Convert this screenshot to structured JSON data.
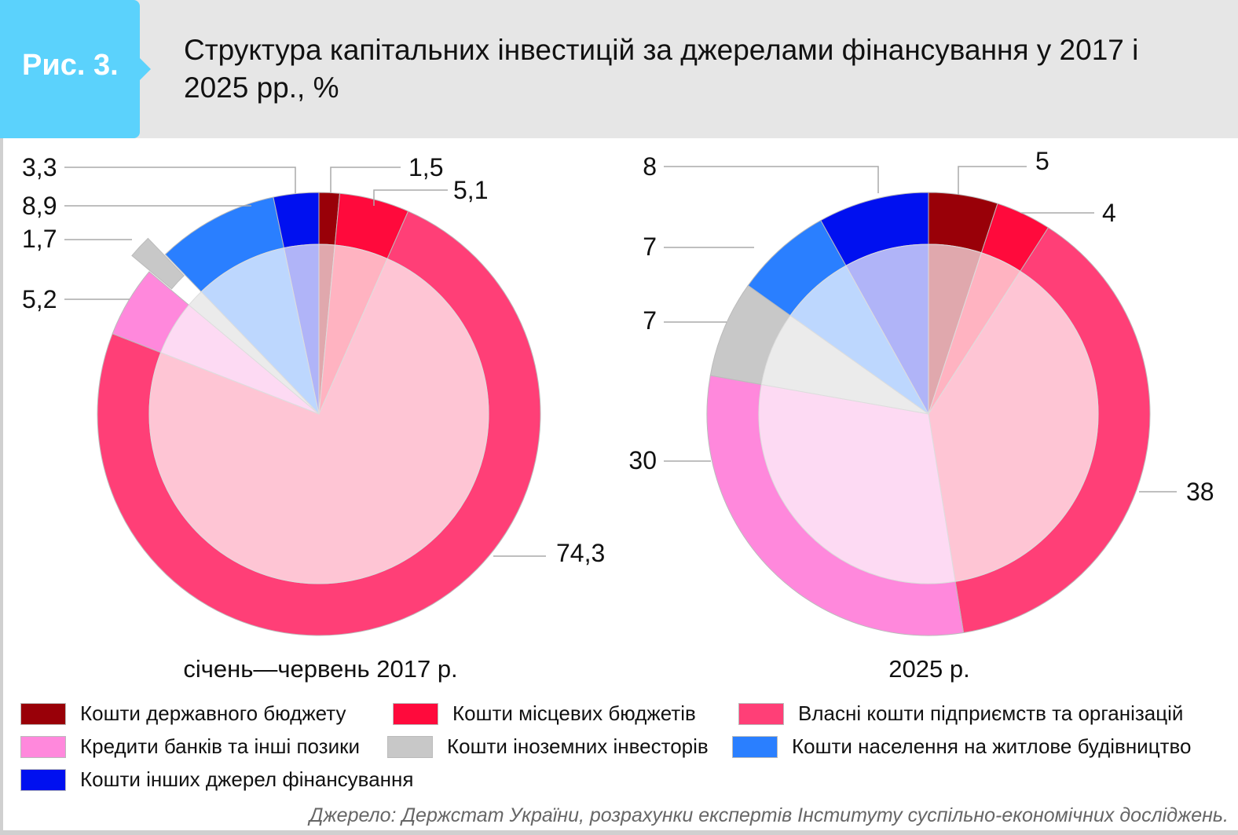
{
  "header": {
    "figure": "Рис. 3.",
    "title": "Структура капітальних інвестицій за джерелами фінансування у 2017 і 2025 рр., %"
  },
  "chart_data": [
    {
      "type": "pie",
      "title": "січень—червень 2017 р.",
      "categories": [
        "Кошти державного бюджету",
        "Кошти місцевих бюджетів",
        "Власні кошти підприємств та організацій",
        "Кредити банків та інші позики",
        "Кошти іноземних інвесторів",
        "Кошти населення на житлове будівництво",
        "Кошти інших джерел фінансування"
      ],
      "values": [
        1.5,
        5.1,
        74.3,
        5.2,
        1.7,
        8.9,
        3.3
      ],
      "labels": [
        "1,5",
        "5,1",
        "74,3",
        "5,2",
        "1,7",
        "8,9",
        "3,3"
      ],
      "exploded": [
        4
      ]
    },
    {
      "type": "pie",
      "title": "2025 р.",
      "categories": [
        "Кошти державного бюджету",
        "Кошти місцевих бюджетів",
        "Власні кошти підприємств та організацій",
        "Кредити банків та інші позики",
        "Кошти іноземних інвесторів",
        "Кошти населення на житлове будівництво",
        "Кошти інших джерел фінансування"
      ],
      "values": [
        5,
        4,
        38,
        30,
        7,
        7,
        8
      ],
      "labels": [
        "5",
        "4",
        "38",
        "30",
        "7",
        "7",
        "8"
      ],
      "exploded": []
    }
  ],
  "colors": {
    "outer": [
      "#990008",
      "#ff0a3c",
      "#ff3f77",
      "#ff88dc",
      "#c8c8c8",
      "#2a7fff",
      "#0010f0"
    ],
    "inner": [
      "#e0a8ad",
      "#ffb3c1",
      "#fec5d4",
      "#fddaf3",
      "#ebebeb",
      "#bdd7fe",
      "#b0b4f8"
    ]
  },
  "legend": [
    "Кошти державного бюджету",
    "Кошти місцевих бюджетів",
    "Власні кошти підприємств та організацій",
    "Кредити банків та інші позики",
    "Кошти іноземних інвесторів",
    "Кошти населення на житлове будівництво",
    "Кошти інших джерел фінансування"
  ],
  "source": "Джерело: Держстат України, розрахунки експертів Інституту суспільно-економічних досліджень."
}
